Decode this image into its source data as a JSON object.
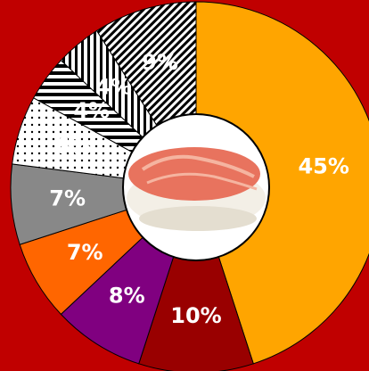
{
  "chart_data": {
    "type": "donut",
    "categories": [
      null,
      null,
      null,
      null,
      null,
      null,
      null,
      null,
      null
    ],
    "values": [
      45,
      10,
      8,
      7,
      7,
      6,
      4,
      4,
      9
    ],
    "value_labels": [
      "45%",
      "10%",
      "8%",
      "7%",
      "7%",
      "6%",
      "4%",
      "4%",
      "9%"
    ],
    "fills": [
      "#ffa500",
      "#990000",
      "#800080",
      "#ff6600",
      "#888888",
      "dots",
      "hstripes",
      "vstripes",
      "dstripes"
    ],
    "background": "#c00000"
  }
}
